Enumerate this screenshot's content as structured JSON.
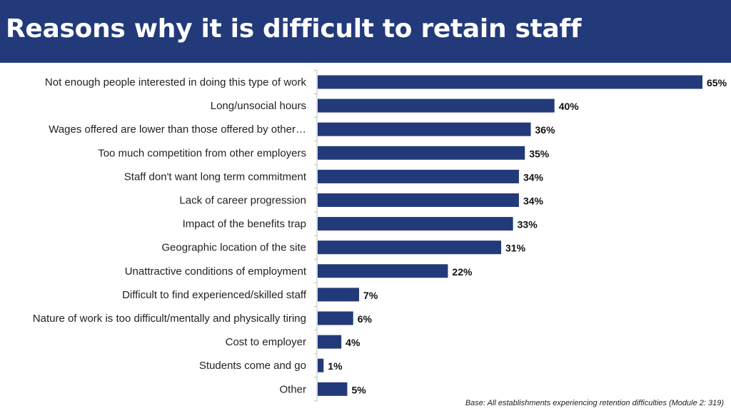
{
  "page": {
    "title": "Reasons why it is difficult to retain staff",
    "base_note": "Base: All establishments experiencing retention difficulties (Module 2: 319)",
    "bar_color": "#233a7a",
    "header_color": "#233a7a"
  },
  "chart_data": {
    "type": "bar",
    "orientation": "horizontal",
    "title": "Reasons why it is difficult to retain staff",
    "categories": [
      "Not enough people interested in doing this type of work",
      "Long/unsocial hours",
      "Wages offered are lower than those offered by other…",
      "Too much competition from other employers",
      "Staff don't want long term commitment",
      "Lack of career progression",
      "Impact of the benefits trap",
      "Geographic location of the site",
      "Unattractive conditions of employment",
      "Difficult to find experienced/skilled staff",
      "Nature of work is too difficult/mentally and physically tiring",
      "Cost to employer",
      "Students come and go",
      "Other"
    ],
    "values": [
      65,
      40,
      36,
      35,
      34,
      34,
      33,
      31,
      22,
      7,
      6,
      4,
      1,
      5
    ],
    "value_labels": [
      "65%",
      "40%",
      "36%",
      "35%",
      "34%",
      "34%",
      "33%",
      "31%",
      "22%",
      "7%",
      "6%",
      "4%",
      "1%",
      "5%"
    ],
    "unit": "%",
    "xlim": [
      0,
      65
    ],
    "grid": false,
    "legend": "none"
  }
}
